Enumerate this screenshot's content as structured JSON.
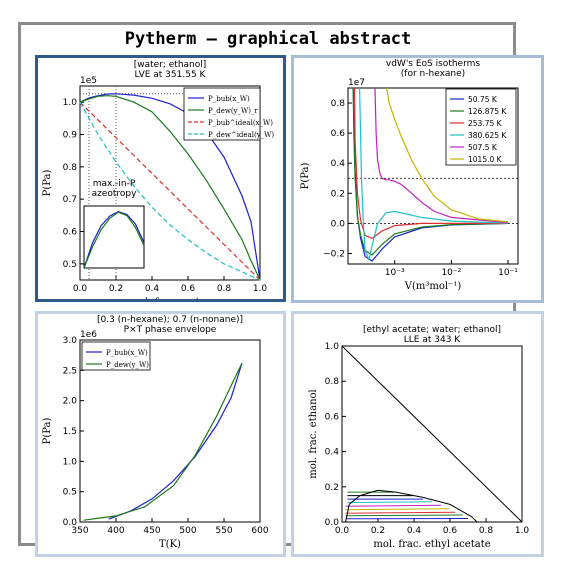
{
  "header": {
    "title": "Pytherm – graphical abstract"
  },
  "chart_data": [
    {
      "type": "line",
      "title": "[water; ethanol]",
      "subtitle": "LVE at 351.55 K",
      "xlabel": "mol. frac. water",
      "ylabel": "P(Pa)",
      "offset_label": "1e5",
      "xlim": [
        0,
        1
      ],
      "ylim": [
        0.45,
        1.05
      ],
      "xticks": [
        "0.0",
        "0.2",
        "0.4",
        "0.6",
        "0.8",
        "1.0"
      ],
      "yticks": [
        "0.5",
        "0.6",
        "0.7",
        "0.8",
        "0.9",
        "1.0"
      ],
      "legend_position": "upper right",
      "annotation": "max.-in-P\nazeotropy",
      "series": [
        {
          "name": "P_bub(x_W)",
          "color": "#1f1fd0",
          "style": "solid",
          "x": [
            0,
            0.05,
            0.1,
            0.15,
            0.2,
            0.3,
            0.4,
            0.5,
            0.6,
            0.7,
            0.8,
            0.9,
            0.95,
            1.0
          ],
          "y": [
            1.0,
            1.013,
            1.02,
            1.025,
            1.026,
            1.022,
            1.012,
            0.995,
            0.965,
            0.91,
            0.83,
            0.71,
            0.63,
            0.45
          ]
        },
        {
          "name": "P_dew(y_W)_r",
          "color": "#1a7a1a",
          "style": "solid",
          "x": [
            0,
            0.05,
            0.1,
            0.15,
            0.2,
            0.3,
            0.4,
            0.5,
            0.6,
            0.7,
            0.8,
            0.9,
            0.95,
            1.0
          ],
          "y": [
            1.0,
            1.01,
            1.018,
            1.02,
            1.018,
            1.0,
            0.97,
            0.91,
            0.84,
            0.76,
            0.67,
            0.575,
            0.51,
            0.45
          ]
        },
        {
          "name": "P_bub^ideal(x_W)",
          "color": "#dd3030",
          "style": "dashed",
          "x": [
            0,
            1
          ],
          "y": [
            1.0,
            0.45
          ]
        },
        {
          "name": "P_dew^ideal(y_W)",
          "color": "#20c0c0",
          "style": "dashed",
          "x": [
            0,
            0.1,
            0.2,
            0.3,
            0.4,
            0.5,
            0.6,
            0.7,
            0.8,
            0.9,
            1.0
          ],
          "y": [
            1.0,
            0.9,
            0.815,
            0.74,
            0.675,
            0.62,
            0.575,
            0.535,
            0.5,
            0.475,
            0.45
          ]
        }
      ],
      "inset": {
        "series": [
          {
            "color": "#1f1fd0",
            "x": [
              0,
              0.05,
              0.1,
              0.15,
              0.2,
              0.25,
              0.3,
              0.35
            ],
            "y": [
              0,
              0.45,
              0.75,
              0.92,
              1.0,
              0.95,
              0.78,
              0.45
            ]
          },
          {
            "color": "#1a7a1a",
            "x": [
              0,
              0.05,
              0.1,
              0.15,
              0.2,
              0.25,
              0.3,
              0.35
            ],
            "y": [
              0,
              0.38,
              0.68,
              0.88,
              0.99,
              0.93,
              0.72,
              0.4
            ]
          }
        ]
      }
    },
    {
      "type": "line",
      "title": "vdW's EoS isotherms",
      "subtitle": "(for n-hexane)",
      "xlabel": "V(m³mol⁻¹)",
      "ylabel": "P(Pa)",
      "offset_label": "1e7",
      "xscale": "log",
      "xlim": [
        0.00015,
        0.15
      ],
      "ylim": [
        -0.27,
        0.9
      ],
      "xticks": [
        "10⁻³",
        "10⁻²",
        "10⁻¹"
      ],
      "yticks": [
        "−0.2",
        "0.0",
        "0.2",
        "0.4",
        "0.6",
        "0.8"
      ],
      "legend_position": "upper right",
      "series": [
        {
          "name": "50.75 K",
          "color": "#1f1fd0",
          "x": [
            0.000185,
            0.0002,
            0.00022,
            0.00025,
            0.0003,
            0.0004,
            0.0006,
            0.001,
            0.003,
            0.01,
            0.1
          ],
          "y": [
            0.9,
            0.35,
            0.05,
            -0.1,
            -0.22,
            -0.25,
            -0.17,
            -0.09,
            -0.03,
            -0.01,
            0
          ]
        },
        {
          "name": "126.875 K",
          "color": "#1a7a1a",
          "x": [
            0.000185,
            0.00019,
            0.0002,
            0.00022,
            0.00025,
            0.0003,
            0.0004,
            0.0006,
            0.001,
            0.003,
            0.01,
            0.1
          ],
          "y": [
            0.9,
            0.6,
            0.3,
            0.05,
            -0.08,
            -0.18,
            -0.21,
            -0.14,
            -0.07,
            -0.025,
            -0.008,
            0
          ]
        },
        {
          "name": "253.75 K",
          "color": "#dd3030",
          "x": [
            0.000195,
            0.0002,
            0.00022,
            0.00025,
            0.0003,
            0.0004,
            0.0006,
            0.001,
            0.003,
            0.01,
            0.1
          ],
          "y": [
            0.9,
            0.55,
            0.2,
            0.02,
            -0.08,
            -0.1,
            -0.05,
            -0.015,
            0,
            0,
            0
          ]
        },
        {
          "name": "380.625 K",
          "color": "#20c0c0",
          "x": [
            0.00024,
            0.00026,
            0.00028,
            0.0003,
            0.00035,
            0.0004,
            0.0005,
            0.0007,
            0.001,
            0.003,
            0.01,
            0.1
          ],
          "y": [
            0.9,
            0.3,
            0.0,
            -0.18,
            -0.24,
            -0.15,
            0.0,
            0.07,
            0.08,
            0.04,
            0.015,
            0.002
          ]
        },
        {
          "name": "507.5 K",
          "color": "#c020c0",
          "x": [
            0.00045,
            0.00047,
            0.0005,
            0.00055,
            0.0006,
            0.0007,
            0.0008,
            0.001,
            0.0013,
            0.002,
            0.003,
            0.005,
            0.01,
            0.1
          ],
          "y": [
            0.9,
            0.6,
            0.42,
            0.33,
            0.3,
            0.29,
            0.29,
            0.28,
            0.26,
            0.2,
            0.14,
            0.08,
            0.04,
            0.005
          ]
        },
        {
          "name": "1015.0 K",
          "color": "#c8b400",
          "x": [
            0.00072,
            0.0008,
            0.001,
            0.0013,
            0.002,
            0.003,
            0.005,
            0.01,
            0.03,
            0.1
          ],
          "y": [
            0.9,
            0.8,
            0.69,
            0.58,
            0.42,
            0.3,
            0.18,
            0.09,
            0.03,
            0.01
          ]
        }
      ],
      "reference_lines": [
        {
          "y": 0.3,
          "style": "dotted"
        },
        {
          "y": 0.0,
          "style": "dotted"
        }
      ]
    },
    {
      "type": "line",
      "title": "[0.3 (n-hexane); 0.7 (n-nonane)]",
      "subtitle": "P×T phase envelope",
      "xlabel": "T(K)",
      "ylabel": "P(Pa)",
      "offset_label": "1e6",
      "xlim": [
        350,
        600
      ],
      "ylim": [
        0,
        3.0
      ],
      "xticks": [
        "350",
        "400",
        "450",
        "500",
        "550",
        "600"
      ],
      "yticks": [
        "0.0",
        "0.5",
        "1.0",
        "1.5",
        "2.0",
        "2.5",
        "3.0"
      ],
      "legend_position": "upper left",
      "series": [
        {
          "name": "P_bub(x_W)",
          "color": "#1f1fd0",
          "x": [
            390,
            420,
            450,
            480,
            510,
            540,
            560,
            575
          ],
          "y": [
            0.05,
            0.18,
            0.38,
            0.68,
            1.08,
            1.6,
            2.05,
            2.62
          ]
        },
        {
          "name": "P_dew(y_W)",
          "color": "#1a7a1a",
          "x": [
            355,
            400,
            440,
            480,
            510,
            540,
            560,
            575
          ],
          "y": [
            0.03,
            0.1,
            0.25,
            0.6,
            1.1,
            1.75,
            2.25,
            2.62
          ]
        }
      ]
    },
    {
      "type": "line",
      "title": "[ethyl acetate; water; ethanol]",
      "subtitle": "LLE at 343 K",
      "xlabel": "mol. frac. ethyl acetate",
      "ylabel": "mol. frac. ethanol",
      "xlim": [
        0,
        1
      ],
      "ylim": [
        0,
        1
      ],
      "xticks": [
        "0.0",
        "0.2",
        "0.4",
        "0.6",
        "0.8",
        "1.0"
      ],
      "yticks": [
        "0.0",
        "0.2",
        "0.4",
        "0.6",
        "0.8",
        "1.0"
      ],
      "binodal": {
        "x": [
          0.02,
          0.04,
          0.1,
          0.2,
          0.3,
          0.45,
          0.6,
          0.72,
          0.75
        ],
        "y": [
          0.0,
          0.1,
          0.15,
          0.18,
          0.17,
          0.14,
          0.1,
          0.03,
          0.0
        ]
      },
      "tie_lines": [
        {
          "color": "#1a7a1a",
          "x": [
            0.03,
            0.3
          ],
          "y": [
            0.17,
            0.17
          ]
        },
        {
          "color": "#000000",
          "x": [
            0.03,
            0.4
          ],
          "y": [
            0.15,
            0.15
          ]
        },
        {
          "color": "#1f1fd0",
          "x": [
            0.03,
            0.45
          ],
          "y": [
            0.13,
            0.13
          ]
        },
        {
          "color": "#20c0c0",
          "x": [
            0.03,
            0.5
          ],
          "y": [
            0.11,
            0.115
          ]
        },
        {
          "color": "#c020c0",
          "x": [
            0.02,
            0.55
          ],
          "y": [
            0.09,
            0.095
          ]
        },
        {
          "color": "#c8b400",
          "x": [
            0.02,
            0.6
          ],
          "y": [
            0.07,
            0.075
          ]
        },
        {
          "color": "#dd3030",
          "x": [
            0.02,
            0.63
          ],
          "y": [
            0.05,
            0.055
          ]
        },
        {
          "color": "#1a7a1a",
          "x": [
            0.02,
            0.67
          ],
          "y": [
            0.035,
            0.04
          ]
        },
        {
          "color": "#1f1fd0",
          "x": [
            0.02,
            0.7
          ],
          "y": [
            0.018,
            0.02
          ]
        }
      ]
    }
  ]
}
